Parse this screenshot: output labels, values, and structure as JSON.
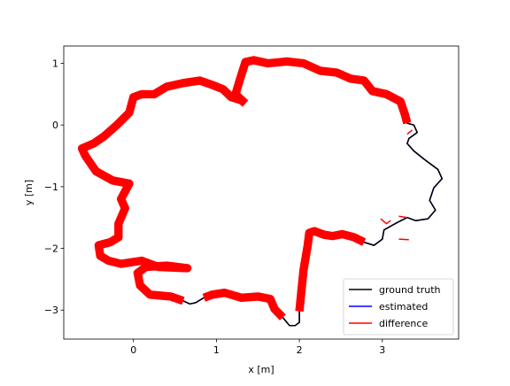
{
  "chart_data": {
    "type": "line",
    "title": "",
    "xlabel": "x [m]",
    "ylabel": "y [m]",
    "xlim": [
      -0.84,
      3.92
    ],
    "ylim": [
      -3.47,
      1.28
    ],
    "xticks": [
      0,
      1,
      2,
      3
    ],
    "yticks": [
      -3,
      -2,
      -1,
      0,
      1
    ],
    "grid": false,
    "legend": {
      "position": "bottom-right",
      "entries": [
        {
          "name": "ground truth",
          "color": "#000000"
        },
        {
          "name": "estimated",
          "color": "#0000ff"
        },
        {
          "name": "difference",
          "color": "#ff0000"
        }
      ]
    },
    "series": [
      {
        "name": "estimated",
        "color": "#0000ff",
        "points": [
          [
            1.35,
            0.35
          ],
          [
            1.23,
            0.5
          ],
          [
            1.28,
            0.72
          ],
          [
            1.35,
            1.02
          ],
          [
            1.45,
            1.05
          ],
          [
            1.62,
            1.0
          ],
          [
            1.85,
            1.03
          ],
          [
            2.05,
            1.0
          ],
          [
            2.25,
            0.88
          ],
          [
            2.45,
            0.85
          ],
          [
            2.62,
            0.75
          ],
          [
            2.78,
            0.72
          ],
          [
            2.88,
            0.55
          ],
          [
            3.05,
            0.5
          ],
          [
            3.22,
            0.38
          ],
          [
            3.27,
            0.18
          ],
          [
            3.3,
            0.03
          ],
          [
            3.38,
            0.0
          ],
          [
            3.42,
            -0.12
          ],
          [
            3.32,
            -0.22
          ],
          [
            3.3,
            -0.3
          ],
          [
            3.38,
            -0.42
          ],
          [
            3.5,
            -0.55
          ],
          [
            3.6,
            -0.65
          ],
          [
            3.67,
            -0.72
          ],
          [
            3.72,
            -0.87
          ],
          [
            3.62,
            -1.02
          ],
          [
            3.57,
            -1.22
          ],
          [
            3.64,
            -1.38
          ],
          [
            3.55,
            -1.52
          ],
          [
            3.4,
            -1.55
          ],
          [
            3.3,
            -1.5
          ],
          [
            3.18,
            -1.58
          ],
          [
            3.02,
            -1.7
          ],
          [
            3.0,
            -1.85
          ],
          [
            2.9,
            -1.95
          ],
          [
            2.78,
            -1.9
          ],
          [
            2.66,
            -1.82
          ],
          [
            2.52,
            -1.77
          ],
          [
            2.4,
            -1.8
          ],
          [
            2.3,
            -1.78
          ],
          [
            2.18,
            -1.72
          ],
          [
            2.12,
            -1.75
          ],
          [
            2.1,
            -1.95
          ],
          [
            2.05,
            -2.35
          ],
          [
            2.02,
            -2.75
          ],
          [
            2.0,
            -3.02
          ],
          [
            2.0,
            -3.2
          ],
          [
            1.95,
            -3.25
          ],
          [
            1.88,
            -3.25
          ],
          [
            1.8,
            -3.12
          ],
          [
            1.7,
            -2.98
          ],
          [
            1.65,
            -2.82
          ],
          [
            1.5,
            -2.78
          ],
          [
            1.3,
            -2.8
          ],
          [
            1.1,
            -2.72
          ],
          [
            0.95,
            -2.75
          ],
          [
            0.85,
            -2.8
          ],
          [
            0.75,
            -2.88
          ],
          [
            0.68,
            -2.9
          ],
          [
            0.6,
            -2.85
          ],
          [
            0.45,
            -2.78
          ],
          [
            0.2,
            -2.75
          ],
          [
            0.08,
            -2.6
          ],
          [
            0.05,
            -2.4
          ],
          [
            0.15,
            -2.3
          ],
          [
            0.4,
            -2.28
          ],
          [
            0.65,
            -2.32
          ],
          [
            0.3,
            -2.3
          ],
          [
            0.1,
            -2.2
          ],
          [
            -0.15,
            -2.25
          ],
          [
            -0.3,
            -2.2
          ],
          [
            -0.4,
            -2.12
          ],
          [
            -0.42,
            -1.95
          ],
          [
            -0.28,
            -1.9
          ],
          [
            -0.18,
            -1.82
          ],
          [
            -0.18,
            -1.6
          ],
          [
            -0.1,
            -1.35
          ],
          [
            -0.15,
            -1.2
          ],
          [
            -0.05,
            -0.95
          ],
          [
            -0.25,
            -0.9
          ],
          [
            -0.45,
            -0.75
          ],
          [
            -0.58,
            -0.5
          ],
          [
            -0.62,
            -0.38
          ],
          [
            -0.48,
            -0.3
          ],
          [
            -0.35,
            -0.18
          ],
          [
            -0.2,
            0.0
          ],
          [
            -0.05,
            0.2
          ],
          [
            0.0,
            0.45
          ],
          [
            0.1,
            0.5
          ],
          [
            0.25,
            0.5
          ],
          [
            0.4,
            0.62
          ],
          [
            0.6,
            0.68
          ],
          [
            0.8,
            0.72
          ],
          [
            0.95,
            0.65
          ],
          [
            1.08,
            0.58
          ],
          [
            1.18,
            0.45
          ],
          [
            1.3,
            0.4
          ]
        ]
      },
      {
        "name": "ground truth",
        "color": "#000000",
        "points": [
          [
            1.35,
            0.35
          ],
          [
            1.23,
            0.5
          ],
          [
            1.28,
            0.72
          ],
          [
            1.35,
            1.02
          ],
          [
            1.45,
            1.05
          ],
          [
            1.62,
            1.0
          ],
          [
            1.85,
            1.03
          ],
          [
            2.05,
            1.0
          ],
          [
            2.25,
            0.88
          ],
          [
            2.45,
            0.85
          ],
          [
            2.62,
            0.75
          ],
          [
            2.78,
            0.72
          ],
          [
            2.88,
            0.55
          ],
          [
            3.05,
            0.5
          ],
          [
            3.22,
            0.38
          ],
          [
            3.27,
            0.18
          ],
          [
            3.3,
            0.03
          ],
          [
            3.38,
            0.0
          ],
          [
            3.42,
            -0.12
          ],
          [
            3.32,
            -0.22
          ],
          [
            3.3,
            -0.3
          ],
          [
            3.38,
            -0.42
          ],
          [
            3.5,
            -0.55
          ],
          [
            3.6,
            -0.65
          ],
          [
            3.67,
            -0.72
          ],
          [
            3.72,
            -0.87
          ],
          [
            3.62,
            -1.02
          ],
          [
            3.57,
            -1.22
          ],
          [
            3.64,
            -1.38
          ],
          [
            3.55,
            -1.52
          ],
          [
            3.4,
            -1.55
          ],
          [
            3.3,
            -1.5
          ],
          [
            3.18,
            -1.58
          ],
          [
            3.02,
            -1.7
          ],
          [
            3.0,
            -1.85
          ],
          [
            2.9,
            -1.95
          ],
          [
            2.78,
            -1.9
          ],
          [
            2.66,
            -1.82
          ],
          [
            2.52,
            -1.77
          ],
          [
            2.4,
            -1.8
          ],
          [
            2.3,
            -1.78
          ],
          [
            2.18,
            -1.72
          ],
          [
            2.12,
            -1.75
          ],
          [
            2.1,
            -1.95
          ],
          [
            2.05,
            -2.35
          ],
          [
            2.02,
            -2.75
          ],
          [
            2.0,
            -3.02
          ],
          [
            2.0,
            -3.2
          ],
          [
            1.95,
            -3.25
          ],
          [
            1.88,
            -3.25
          ],
          [
            1.8,
            -3.12
          ],
          [
            1.7,
            -2.98
          ],
          [
            1.65,
            -2.82
          ],
          [
            1.5,
            -2.78
          ],
          [
            1.3,
            -2.8
          ],
          [
            1.1,
            -2.72
          ],
          [
            0.95,
            -2.75
          ],
          [
            0.85,
            -2.8
          ],
          [
            0.75,
            -2.88
          ],
          [
            0.68,
            -2.9
          ],
          [
            0.6,
            -2.85
          ],
          [
            0.45,
            -2.78
          ],
          [
            0.2,
            -2.75
          ],
          [
            0.08,
            -2.6
          ],
          [
            0.05,
            -2.4
          ],
          [
            0.15,
            -2.3
          ],
          [
            0.4,
            -2.28
          ],
          [
            0.65,
            -2.32
          ],
          [
            0.3,
            -2.3
          ],
          [
            0.1,
            -2.2
          ],
          [
            -0.15,
            -2.25
          ],
          [
            -0.3,
            -2.2
          ],
          [
            -0.4,
            -2.12
          ],
          [
            -0.42,
            -1.95
          ],
          [
            -0.28,
            -1.9
          ],
          [
            -0.18,
            -1.82
          ],
          [
            -0.18,
            -1.6
          ],
          [
            -0.1,
            -1.35
          ],
          [
            -0.15,
            -1.2
          ],
          [
            -0.05,
            -0.95
          ],
          [
            -0.25,
            -0.9
          ],
          [
            -0.45,
            -0.75
          ],
          [
            -0.58,
            -0.5
          ],
          [
            -0.62,
            -0.38
          ],
          [
            -0.48,
            -0.3
          ],
          [
            -0.35,
            -0.18
          ],
          [
            -0.2,
            0.0
          ],
          [
            -0.05,
            0.2
          ],
          [
            0.0,
            0.45
          ],
          [
            0.1,
            0.5
          ],
          [
            0.25,
            0.5
          ],
          [
            0.4,
            0.62
          ],
          [
            0.6,
            0.68
          ],
          [
            0.8,
            0.72
          ],
          [
            0.95,
            0.65
          ],
          [
            1.08,
            0.58
          ],
          [
            1.18,
            0.45
          ],
          [
            1.3,
            0.4
          ]
        ]
      },
      {
        "name": "difference",
        "color": "#ff0000",
        "width_m": 0.1,
        "segments": [
          {
            "points": [
              [
                1.35,
                0.35
              ],
              [
                1.23,
                0.5
              ],
              [
                1.28,
                0.72
              ],
              [
                1.35,
                1.02
              ],
              [
                1.45,
                1.05
              ],
              [
                1.62,
                1.0
              ],
              [
                1.85,
                1.03
              ],
              [
                2.05,
                1.0
              ],
              [
                2.25,
                0.88
              ],
              [
                2.45,
                0.85
              ],
              [
                2.62,
                0.75
              ],
              [
                2.78,
                0.72
              ],
              [
                2.88,
                0.55
              ],
              [
                3.05,
                0.5
              ],
              [
                3.22,
                0.38
              ],
              [
                3.27,
                0.18
              ],
              [
                3.3,
                0.03
              ]
            ]
          },
          {
            "points": [
              [
                2.78,
                -1.9
              ],
              [
                2.66,
                -1.82
              ],
              [
                2.52,
                -1.77
              ],
              [
                2.4,
                -1.8
              ],
              [
                2.3,
                -1.78
              ],
              [
                2.18,
                -1.72
              ],
              [
                2.12,
                -1.75
              ],
              [
                2.1,
                -1.95
              ],
              [
                2.05,
                -2.35
              ],
              [
                2.02,
                -2.75
              ],
              [
                2.0,
                -3.02
              ]
            ]
          },
          {
            "points": [
              [
                1.8,
                -3.12
              ],
              [
                1.7,
                -2.98
              ],
              [
                1.65,
                -2.82
              ],
              [
                1.5,
                -2.78
              ],
              [
                1.3,
                -2.8
              ],
              [
                1.1,
                -2.72
              ],
              [
                0.95,
                -2.75
              ],
              [
                0.85,
                -2.8
              ]
            ]
          },
          {
            "points": [
              [
                0.6,
                -2.85
              ],
              [
                0.45,
                -2.78
              ],
              [
                0.2,
                -2.75
              ],
              [
                0.08,
                -2.6
              ],
              [
                0.05,
                -2.4
              ],
              [
                0.15,
                -2.3
              ],
              [
                0.4,
                -2.28
              ],
              [
                0.65,
                -2.32
              ],
              [
                0.3,
                -2.3
              ],
              [
                0.1,
                -2.2
              ],
              [
                -0.15,
                -2.25
              ],
              [
                -0.3,
                -2.2
              ],
              [
                -0.4,
                -2.12
              ],
              [
                -0.42,
                -1.95
              ],
              [
                -0.28,
                -1.9
              ],
              [
                -0.18,
                -1.82
              ],
              [
                -0.18,
                -1.6
              ],
              [
                -0.1,
                -1.35
              ],
              [
                -0.15,
                -1.2
              ],
              [
                -0.05,
                -0.95
              ],
              [
                -0.25,
                -0.9
              ],
              [
                -0.45,
                -0.75
              ],
              [
                -0.58,
                -0.5
              ],
              [
                -0.62,
                -0.38
              ],
              [
                -0.48,
                -0.3
              ],
              [
                -0.35,
                -0.18
              ],
              [
                -0.2,
                0.0
              ],
              [
                -0.05,
                0.2
              ],
              [
                0.0,
                0.45
              ],
              [
                0.1,
                0.5
              ],
              [
                0.25,
                0.5
              ],
              [
                0.4,
                0.62
              ],
              [
                0.6,
                0.68
              ],
              [
                0.8,
                0.72
              ],
              [
                0.95,
                0.65
              ],
              [
                1.08,
                0.58
              ],
              [
                1.18,
                0.45
              ],
              [
                1.3,
                0.4
              ],
              [
                1.35,
                0.35
              ]
            ]
          },
          {
            "points": [
              [
                3.3,
                -0.15
              ],
              [
                3.36,
                -0.08
              ]
            ]
          },
          {
            "points": [
              [
                3.2,
                -1.48
              ],
              [
                3.3,
                -1.5
              ]
            ]
          },
          {
            "points": [
              [
                2.98,
                -1.52
              ],
              [
                3.05,
                -1.6
              ],
              [
                3.1,
                -1.55
              ]
            ]
          },
          {
            "points": [
              [
                3.2,
                -1.85
              ],
              [
                3.32,
                -1.86
              ]
            ]
          }
        ]
      }
    ]
  }
}
